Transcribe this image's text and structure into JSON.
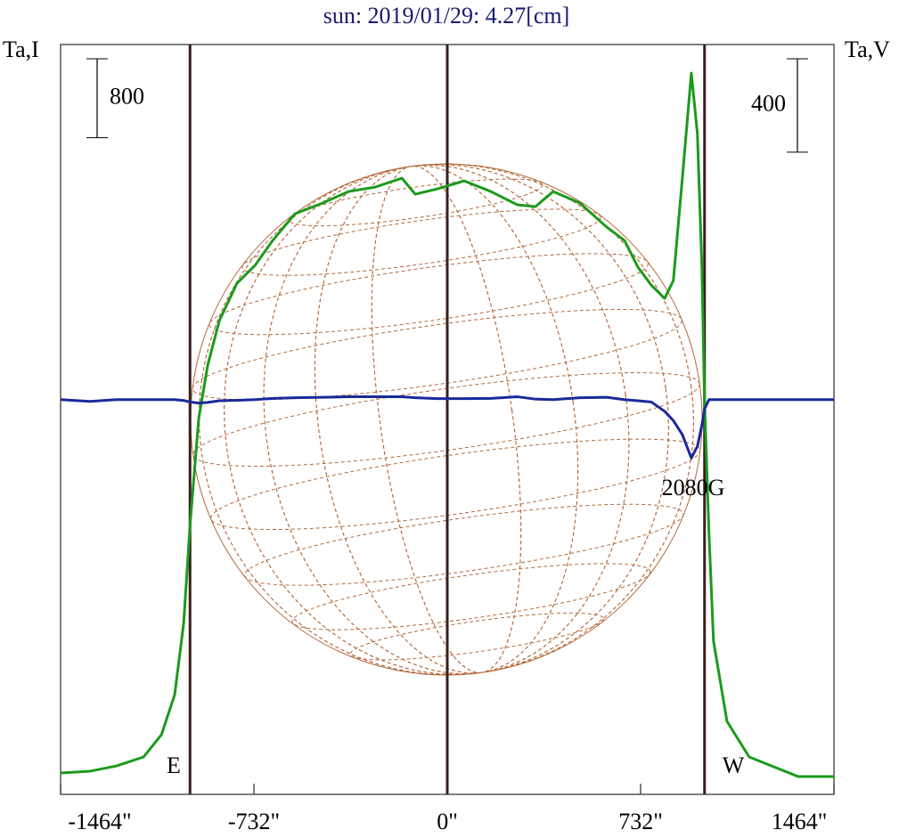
{
  "chart_data": {
    "type": "line",
    "title": "sun: 2019/01/29: 4.27[cm]",
    "y_label": "Ta,I",
    "y2_label": "Ta,V",
    "scale_bar_y": 800,
    "scale_bar_y2": 400,
    "x": [
      -1464,
      -1352,
      -1251,
      -1150,
      -1082,
      -1032,
      -998,
      -974,
      -941,
      -907,
      -863,
      -796,
      -728,
      -661,
      -577,
      -472,
      -374,
      -273,
      -172,
      -121,
      -37,
      64,
      165,
      266,
      334,
      401,
      502,
      604,
      671,
      722,
      772,
      823,
      856,
      890,
      924,
      947,
      964,
      974,
      991,
      1008,
      1059,
      1143,
      1244,
      1328,
      1464
    ],
    "series": [
      {
        "name": "I",
        "color": "#1c9a1c",
        "axis": "y",
        "values": [
          217,
          235,
          289,
          379,
          605,
          1011,
          1733,
          2726,
          3809,
          4350,
          4801,
          5181,
          5361,
          5614,
          5884,
          5993,
          6110,
          6155,
          6245,
          6083,
          6137,
          6218,
          6110,
          5975,
          5957,
          6110,
          5993,
          5749,
          5614,
          5343,
          5162,
          5027,
          5208,
          6245,
          7310,
          6697,
          5343,
          3989,
          2635,
          1552,
          740,
          379,
          271,
          181,
          181
        ]
      },
      {
        "name": "V",
        "color": "#1a2a9a",
        "axis": "y2",
        "values": [
          0,
          -8,
          0,
          0,
          0,
          0,
          -4,
          -10,
          -15,
          -12,
          -5,
          -3,
          0,
          5,
          8,
          10,
          12,
          12,
          12,
          8,
          4,
          4,
          5,
          12,
          2,
          0,
          8,
          10,
          0,
          -5,
          -10,
          -50,
          -90,
          -150,
          -250,
          -200,
          -110,
          -40,
          0,
          0,
          0,
          0,
          0,
          0,
          0
        ]
      }
    ],
    "xlim": [
      -1464,
      1464
    ],
    "xticks": [
      {
        "value": -1464,
        "label": "-1464\""
      },
      {
        "value": -732,
        "label": "-732\""
      },
      {
        "value": 0,
        "label": "0\""
      },
      {
        "value": 732,
        "label": "732\""
      },
      {
        "value": 1464,
        "label": "1464\""
      }
    ],
    "ylim": [
      0,
      7600
    ],
    "y2lim": [
      -1690,
      1520
    ],
    "limb_lines": [
      -974,
      0,
      974
    ],
    "limb_color": "#3a1e1e",
    "east_label": "E",
    "west_label": "W",
    "annotation": "2080G"
  }
}
